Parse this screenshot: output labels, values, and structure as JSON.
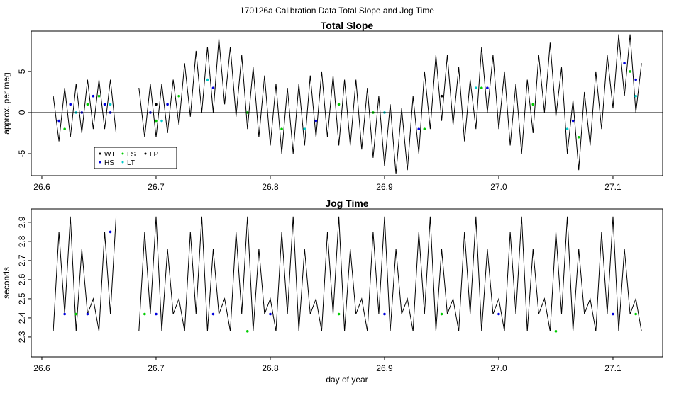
{
  "title": "170126a   Calibration Data Total Slope and Jog Time",
  "chart_data": [
    {
      "type": "line",
      "title": "Total Slope",
      "y_label": "approx. per meg",
      "xlim": [
        26.5907,
        27.1435
      ],
      "ylim": [
        -7.67,
        9.9
      ],
      "xticks": [
        26.6,
        26.7,
        26.8,
        26.9,
        {
          "value": 27,
          "label": "27.0"
        },
        27.1
      ],
      "yticks": [
        -5,
        0,
        5
      ],
      "reference_line": 0,
      "legend": "bottomleft",
      "series": [
        {
          "name": "WT",
          "color": "#000000",
          "style": "line",
          "x": [
            26.61,
            26.615,
            26.62,
            26.625,
            26.63,
            26.635,
            26.64,
            26.645,
            26.65,
            26.655,
            26.66,
            26.665,
            26.675,
            26.685,
            26.69,
            26.695,
            26.7,
            26.705,
            26.71,
            26.715,
            26.72,
            26.725,
            26.73,
            26.735,
            26.74,
            26.745,
            26.75,
            26.755,
            26.76,
            26.765,
            26.77,
            26.775,
            26.78,
            26.785,
            26.79,
            26.795,
            26.8,
            26.805,
            26.81,
            26.815,
            26.82,
            26.825,
            26.83,
            26.835,
            26.84,
            26.845,
            26.85,
            26.855,
            26.86,
            26.865,
            26.87,
            26.875,
            26.88,
            26.885,
            26.89,
            26.895,
            26.9,
            26.905,
            26.91,
            26.915,
            26.92,
            26.925,
            26.93,
            26.935,
            26.94,
            26.945,
            26.95,
            26.955,
            26.96,
            26.965,
            26.97,
            26.975,
            26.98,
            26.985,
            26.99,
            26.995,
            27,
            27.005,
            27.01,
            27.015,
            27.02,
            27.025,
            27.03,
            27.035,
            27.04,
            27.045,
            27.05,
            27.055,
            27.06,
            27.065,
            27.07,
            27.075,
            27.08,
            27.085,
            27.09,
            27.095,
            27.1,
            27.105,
            27.11,
            27.115,
            27.12,
            27.125
          ],
          "values": [
            2,
            -3.5,
            3,
            -3,
            3.5,
            -2.5,
            4,
            -2,
            4,
            -2,
            4,
            -2.5,
            null,
            3,
            -3,
            3.5,
            -3,
            3.5,
            -2.5,
            4,
            -1.5,
            6,
            -0.5,
            7.5,
            0,
            8,
            0,
            9,
            1,
            8,
            -0.5,
            7,
            -2,
            5.5,
            -3,
            4.5,
            -4,
            3.5,
            -5,
            3,
            -5,
            3.5,
            -4,
            4.5,
            -3,
            5,
            -3,
            4.5,
            -4,
            4,
            -4,
            4,
            -4.5,
            3,
            -5.5,
            2,
            -6.5,
            1,
            -7.5,
            0.5,
            -7,
            2,
            -5,
            5,
            -2,
            7,
            -1,
            7,
            -1.5,
            5.5,
            -3.5,
            4,
            -2,
            8,
            0,
            7,
            -2,
            5,
            -4,
            3.5,
            -5,
            4,
            -2.5,
            7,
            0,
            8.5,
            -0.5,
            5.5,
            -5,
            1.5,
            -7,
            2.5,
            -4,
            5,
            -2,
            7,
            0.5,
            9.5,
            2,
            9.5,
            0,
            6
          ]
        },
        {
          "name": "HS",
          "color": "#0000dd",
          "style": "points",
          "x": [
            26.615,
            26.625,
            26.635,
            26.645,
            26.655,
            26.66,
            26.695,
            26.71,
            26.75,
            26.84,
            26.93,
            26.99,
            27.065,
            27.11,
            27.12
          ],
          "values": [
            -1,
            1,
            0,
            2,
            1,
            0,
            0,
            1,
            3,
            -1,
            -2,
            3,
            -1,
            6,
            4
          ]
        },
        {
          "name": "LS",
          "color": "#00cc00",
          "style": "points",
          "x": [
            26.62,
            26.64,
            26.65,
            26.7,
            26.72,
            26.78,
            26.81,
            26.86,
            26.89,
            26.935,
            26.985,
            27.03,
            27.07,
            27.115
          ],
          "values": [
            -2,
            1,
            2,
            -1,
            2,
            0,
            -2,
            1,
            0,
            -2,
            3,
            1,
            -3,
            5
          ]
        },
        {
          "name": "LT",
          "color": "#00cccc",
          "style": "points",
          "x": [
            26.63,
            26.66,
            26.705,
            26.745,
            26.83,
            26.9,
            26.98,
            27.06,
            27.12
          ],
          "values": [
            0,
            1,
            -1,
            4,
            -2,
            0,
            3,
            -2,
            2
          ]
        },
        {
          "name": "LP",
          "color": "#000000",
          "style": "points",
          "x": [
            26.7,
            26.95
          ],
          "values": [
            1,
            2
          ]
        }
      ]
    },
    {
      "type": "line",
      "title": "Jog Time",
      "y_label": "seconds",
      "x_label": "day of year",
      "xlim": [
        26.5907,
        27.1435
      ],
      "ylim": [
        2.196,
        2.97
      ],
      "xticks": [
        26.6,
        26.7,
        26.8,
        26.9,
        {
          "value": 27,
          "label": "27.0"
        },
        27.1
      ],
      "yticks": [
        2.3,
        2.4,
        2.5,
        2.6,
        2.7,
        2.8,
        2.9
      ],
      "series": [
        {
          "name": "WT",
          "color": "#000000",
          "style": "line",
          "x": [
            26.61,
            26.615,
            26.62,
            26.625,
            26.63,
            26.635,
            26.64,
            26.645,
            26.65,
            26.655,
            26.66,
            26.665,
            26.675,
            26.685,
            26.69,
            26.695,
            26.7,
            26.705,
            26.71,
            26.715,
            26.72,
            26.725,
            26.73,
            26.735,
            26.74,
            26.745,
            26.75,
            26.755,
            26.76,
            26.765,
            26.77,
            26.775,
            26.78,
            26.785,
            26.79,
            26.795,
            26.8,
            26.805,
            26.81,
            26.815,
            26.82,
            26.825,
            26.83,
            26.835,
            26.84,
            26.845,
            26.85,
            26.855,
            26.86,
            26.865,
            26.87,
            26.875,
            26.88,
            26.885,
            26.89,
            26.895,
            26.9,
            26.905,
            26.91,
            26.915,
            26.92,
            26.925,
            26.93,
            26.935,
            26.94,
            26.945,
            26.95,
            26.955,
            26.96,
            26.965,
            26.97,
            26.975,
            26.98,
            26.985,
            26.99,
            26.995,
            27,
            27.005,
            27.01,
            27.015,
            27.02,
            27.025,
            27.03,
            27.035,
            27.04,
            27.045,
            27.05,
            27.055,
            27.06,
            27.065,
            27.07,
            27.075,
            27.08,
            27.085,
            27.09,
            27.095,
            27.1,
            27.105,
            27.11,
            27.115,
            27.12,
            27.125
          ],
          "values": [
            2.33,
            2.85,
            2.42,
            2.93,
            2.33,
            2.76,
            2.42,
            2.5,
            2.33,
            2.85,
            2.42,
            2.93,
            null,
            2.33,
            2.85,
            2.42,
            2.93,
            2.33,
            2.76,
            2.42,
            2.5,
            2.33,
            2.85,
            2.42,
            2.93,
            2.33,
            2.76,
            2.42,
            2.5,
            2.33,
            2.85,
            2.42,
            2.93,
            2.33,
            2.76,
            2.42,
            2.5,
            2.33,
            2.85,
            2.42,
            2.93,
            2.33,
            2.76,
            2.42,
            2.5,
            2.33,
            2.85,
            2.42,
            2.93,
            2.33,
            2.76,
            2.42,
            2.5,
            2.33,
            2.85,
            2.42,
            2.93,
            2.33,
            2.76,
            2.42,
            2.5,
            2.33,
            2.85,
            2.42,
            2.93,
            2.33,
            2.76,
            2.42,
            2.5,
            2.33,
            2.85,
            2.42,
            2.93,
            2.33,
            2.76,
            2.42,
            2.5,
            2.33,
            2.85,
            2.42,
            2.93,
            2.33,
            2.76,
            2.42,
            2.5,
            2.33,
            2.85,
            2.42,
            2.93,
            2.33,
            2.76,
            2.42,
            2.5,
            2.33,
            2.85,
            2.42,
            2.93,
            2.33,
            2.76,
            2.42,
            2.5,
            2.33
          ]
        },
        {
          "name": "HS",
          "color": "#0000dd",
          "style": "points",
          "x": [
            26.62,
            26.64,
            26.66,
            26.7,
            26.75,
            26.8,
            26.9,
            27,
            27.1
          ],
          "values": [
            2.42,
            2.42,
            2.85,
            2.42,
            2.42,
            2.42,
            2.42,
            2.42,
            2.42
          ]
        },
        {
          "name": "LS",
          "color": "#00cc00",
          "style": "points",
          "x": [
            26.63,
            26.69,
            26.78,
            26.86,
            26.95,
            27.05,
            27.12
          ],
          "values": [
            2.42,
            2.42,
            2.33,
            2.42,
            2.42,
            2.33,
            2.42
          ]
        }
      ]
    }
  ]
}
